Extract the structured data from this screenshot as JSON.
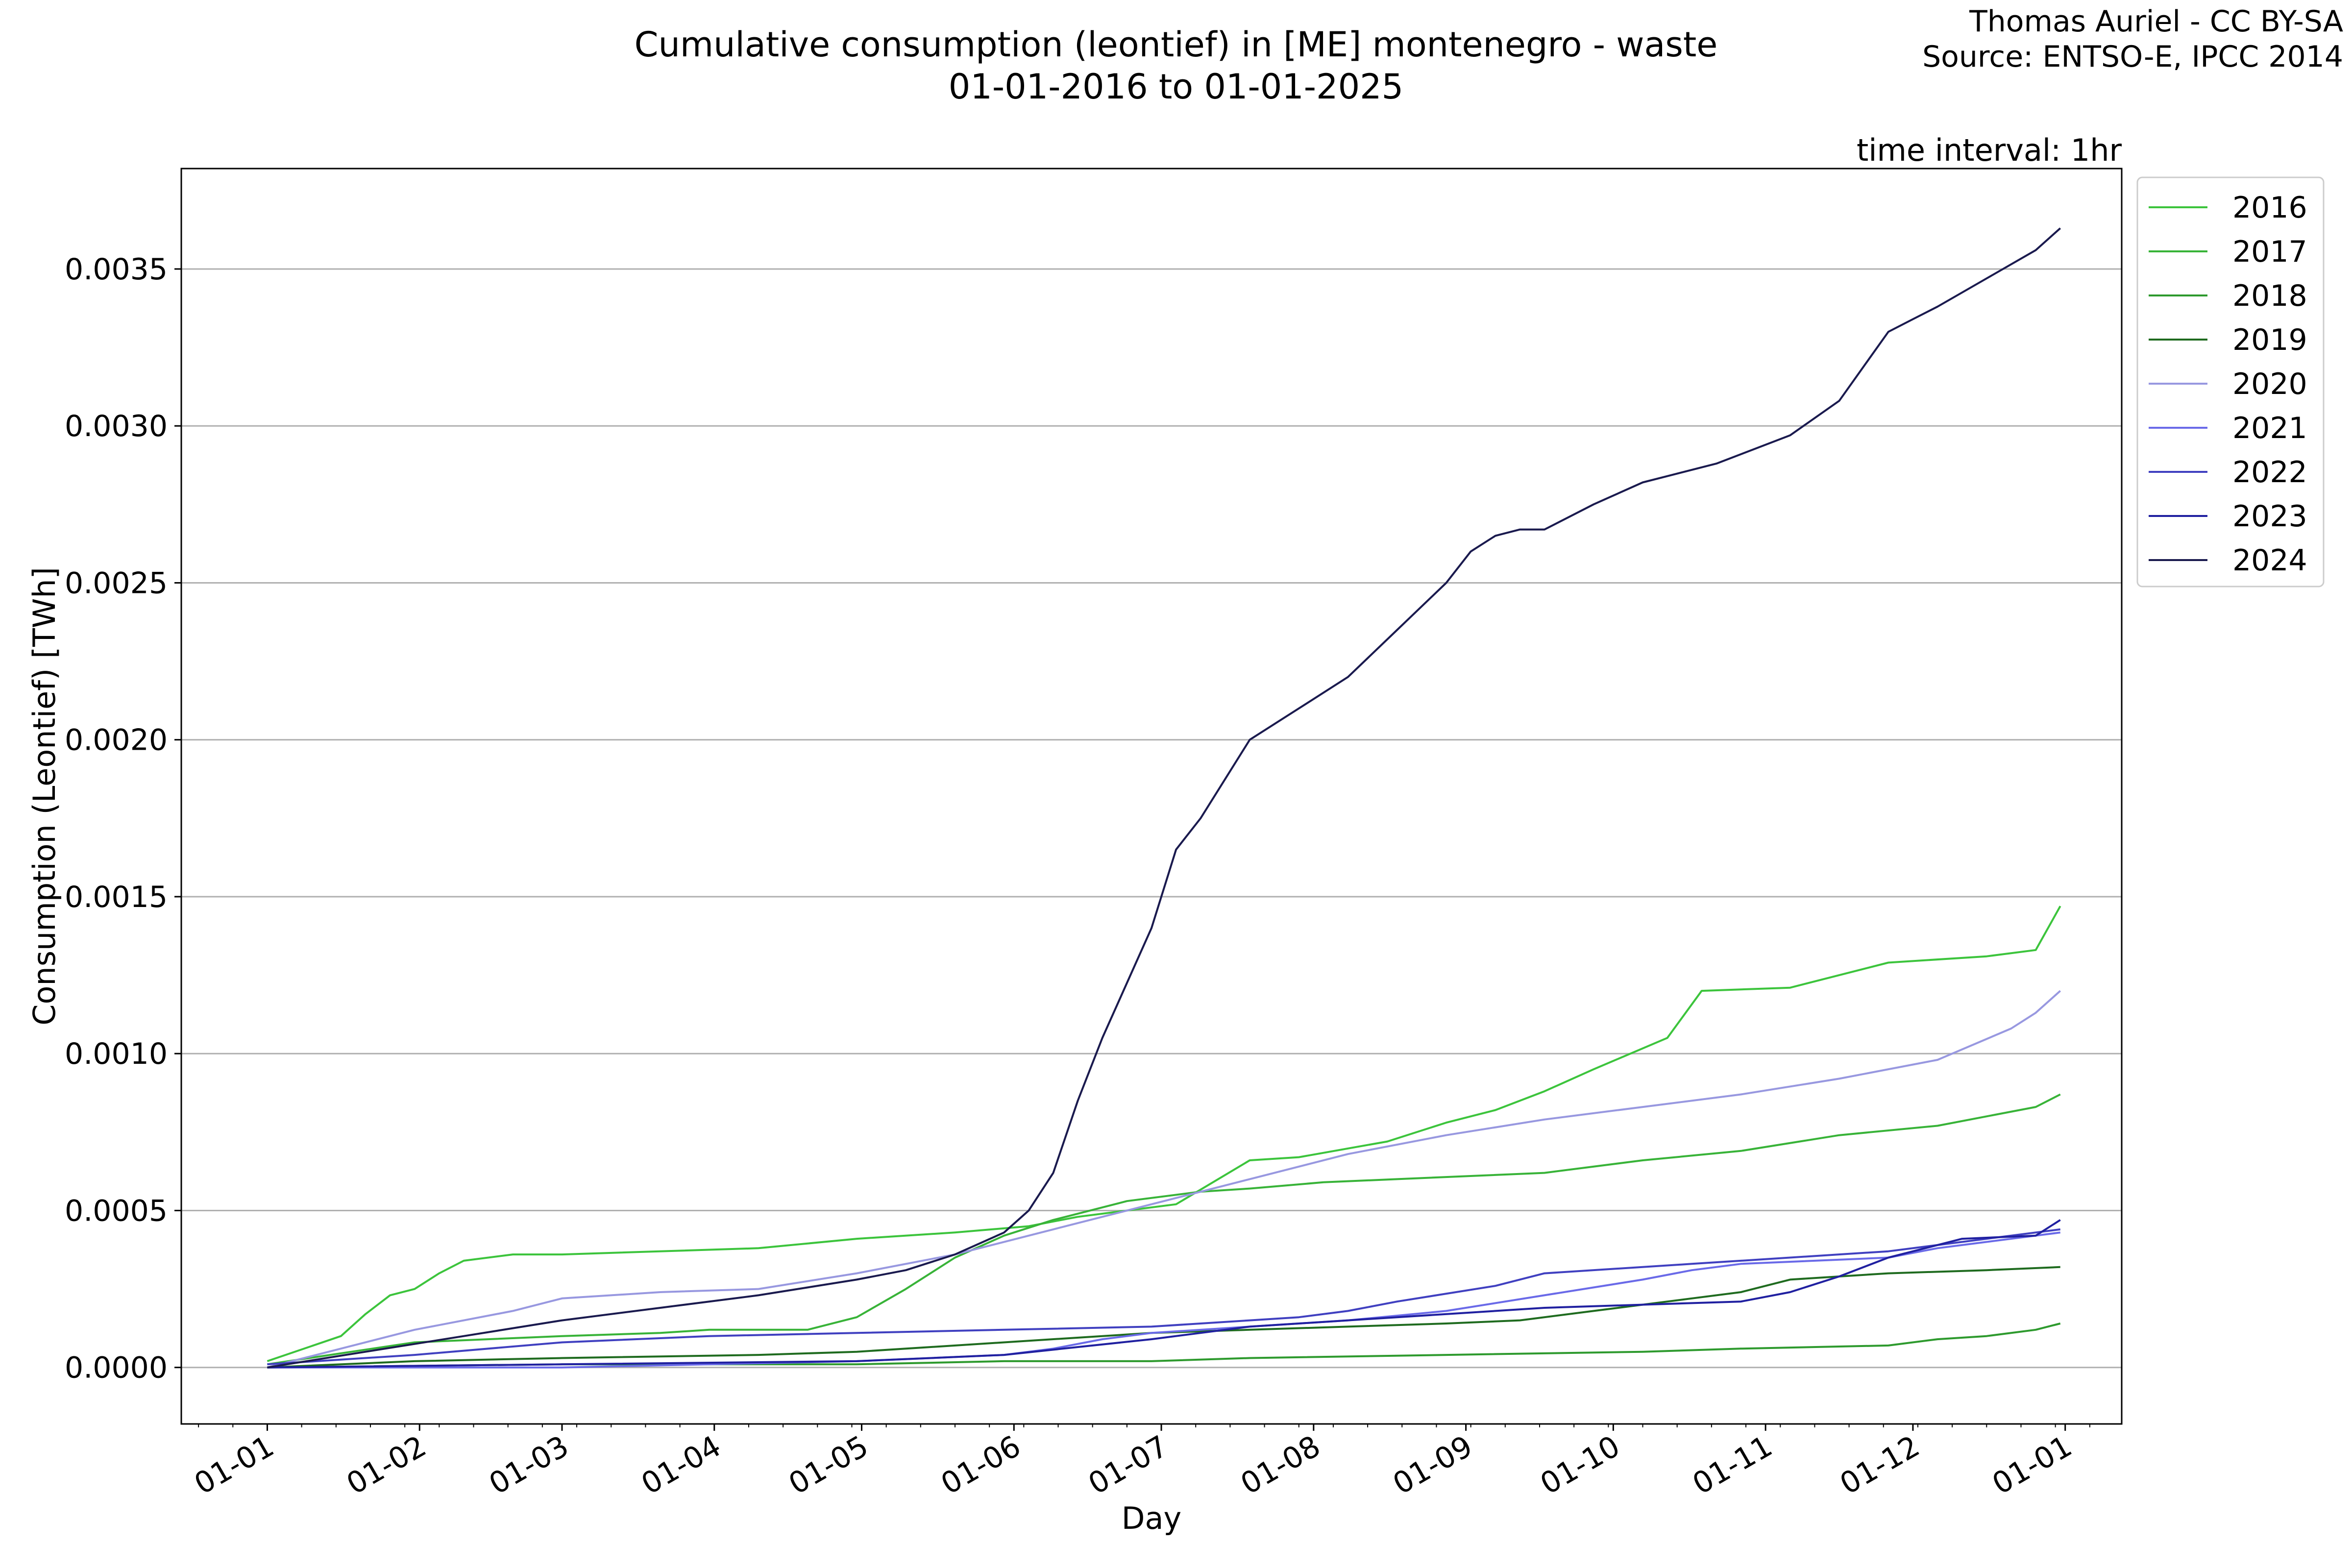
{
  "title_line1": "Cumulative consumption (leontief) in [ME] montenegro - waste",
  "title_line2": "01-01-2016 to 01-01-2025",
  "credit_line1": "Thomas Auriel - CC BY-SA",
  "credit_line2": "Source: ENTSO-E, IPCC 2014",
  "interval_label": "time interval: 1hr",
  "chart_data": {
    "type": "line",
    "xlabel": "Day",
    "ylabel": "Consumption (Leontief) [TWh]",
    "x_tick_labels": [
      "01-01",
      "01-02",
      "01-03",
      "01-04",
      "01-05",
      "01-06",
      "01-07",
      "01-08",
      "01-09",
      "01-10",
      "01-11",
      "01-12",
      "01-01"
    ],
    "y_tick_labels": [
      "0.0000",
      "0.0005",
      "0.0010",
      "0.0015",
      "0.0020",
      "0.0025",
      "0.0030",
      "0.0035"
    ],
    "y_ticks": [
      0,
      0.0005,
      0.001,
      0.0015,
      0.002,
      0.0025,
      0.003,
      0.0035
    ],
    "ylim": [
      -0.00018,
      0.00382
    ],
    "xlim_days": [
      -17.5,
      377.5
    ],
    "grid": "horizontal",
    "legend_position": "outside-right-top",
    "series": [
      {
        "name": "2016",
        "color": "#3cc43c",
        "x": [
          0,
          15,
          20,
          25,
          30,
          35,
          40,
          50,
          60,
          100,
          120,
          140,
          155,
          165,
          185,
          200,
          210,
          228,
          240,
          250,
          260,
          270,
          285,
          292,
          310,
          330,
          350,
          360,
          365
        ],
        "y": [
          2e-05,
          0.0001,
          0.00017,
          0.00023,
          0.00025,
          0.0003,
          0.00034,
          0.00036,
          0.00036,
          0.00038,
          0.00041,
          0.00043,
          0.00045,
          0.00048,
          0.00052,
          0.00066,
          0.00067,
          0.00072,
          0.00078,
          0.00082,
          0.00088,
          0.00095,
          0.00105,
          0.0012,
          0.00121,
          0.00129,
          0.00131,
          0.00133,
          0.00147
        ]
      },
      {
        "name": "2017",
        "color": "#38b338",
        "x": [
          0,
          30,
          60,
          80,
          90,
          110,
          120,
          130,
          140,
          150,
          160,
          175,
          190,
          200,
          215,
          230,
          260,
          280,
          300,
          320,
          340,
          360,
          365
        ],
        "y": [
          1e-05,
          8e-05,
          0.0001,
          0.00011,
          0.00012,
          0.00012,
          0.00016,
          0.00025,
          0.00035,
          0.00042,
          0.00047,
          0.00053,
          0.00056,
          0.00057,
          0.00059,
          0.0006,
          0.00062,
          0.00066,
          0.00069,
          0.00074,
          0.00077,
          0.00083,
          0.00087
        ]
      },
      {
        "name": "2018",
        "color": "#2e9a2e",
        "x": [
          0,
          60,
          120,
          150,
          180,
          200,
          240,
          280,
          300,
          330,
          340,
          350,
          360,
          365
        ],
        "y": [
          0,
          1e-05,
          1e-05,
          2e-05,
          2e-05,
          3e-05,
          4e-05,
          5e-05,
          6e-05,
          7e-05,
          9e-05,
          0.0001,
          0.00012,
          0.00014
        ]
      },
      {
        "name": "2019",
        "color": "#1f6b1f",
        "x": [
          0,
          30,
          60,
          100,
          120,
          150,
          180,
          200,
          220,
          240,
          255,
          270,
          290,
          300,
          310,
          330,
          350,
          365
        ],
        "y": [
          0,
          2e-05,
          3e-05,
          4e-05,
          5e-05,
          8e-05,
          0.00011,
          0.00012,
          0.00013,
          0.00014,
          0.00015,
          0.00018,
          0.00022,
          0.00024,
          0.00028,
          0.0003,
          0.00031,
          0.00032
        ]
      },
      {
        "name": "2020",
        "color": "#9898e0",
        "x": [
          0,
          30,
          50,
          60,
          80,
          100,
          120,
          140,
          160,
          180,
          200,
          220,
          240,
          260,
          280,
          300,
          320,
          340,
          355,
          360,
          365
        ],
        "y": [
          0,
          0.00012,
          0.00018,
          0.00022,
          0.00024,
          0.00025,
          0.0003,
          0.00036,
          0.00044,
          0.00052,
          0.0006,
          0.00068,
          0.00074,
          0.00079,
          0.00083,
          0.00087,
          0.00092,
          0.00098,
          0.00108,
          0.00113,
          0.0012
        ]
      },
      {
        "name": "2021",
        "color": "#6a6ae8",
        "x": [
          0,
          60,
          90,
          120,
          150,
          160,
          170,
          180,
          200,
          220,
          240,
          260,
          280,
          290,
          300,
          330,
          340,
          360,
          365
        ],
        "y": [
          0,
          0,
          1e-05,
          2e-05,
          4e-05,
          6e-05,
          9e-05,
          0.00011,
          0.00013,
          0.00015,
          0.00018,
          0.00023,
          0.00028,
          0.00031,
          0.00033,
          0.00035,
          0.00038,
          0.00042,
          0.00043
        ]
      },
      {
        "name": "2022",
        "color": "#4040c0",
        "x": [
          0,
          30,
          60,
          90,
          120,
          150,
          180,
          200,
          210,
          220,
          230,
          250,
          260,
          290,
          300,
          330,
          350,
          365
        ],
        "y": [
          1e-05,
          4e-05,
          8e-05,
          0.0001,
          0.00011,
          0.00012,
          0.00013,
          0.00015,
          0.00016,
          0.00018,
          0.00021,
          0.00026,
          0.0003,
          0.00033,
          0.00034,
          0.00037,
          0.00041,
          0.00044
        ]
      },
      {
        "name": "2023",
        "color": "#2020a0",
        "x": [
          0,
          60,
          120,
          150,
          180,
          195,
          200,
          210,
          220,
          230,
          250,
          260,
          280,
          300,
          310,
          320,
          330,
          345,
          360,
          365
        ],
        "y": [
          0,
          1e-05,
          2e-05,
          4e-05,
          9e-05,
          0.00012,
          0.00013,
          0.00014,
          0.00015,
          0.00016,
          0.00018,
          0.00019,
          0.0002,
          0.00021,
          0.00024,
          0.00029,
          0.00035,
          0.00041,
          0.00042,
          0.00047
        ]
      },
      {
        "name": "2024",
        "color": "#1a1a4e",
        "x": [
          0,
          20,
          40,
          60,
          80,
          100,
          120,
          130,
          140,
          150,
          155,
          160,
          165,
          170,
          180,
          185,
          190,
          200,
          210,
          220,
          230,
          240,
          245,
          250,
          255,
          260,
          270,
          280,
          285,
          295,
          310,
          320,
          330,
          335,
          340,
          350,
          360,
          365
        ],
        "y": [
          0,
          5e-05,
          0.0001,
          0.00015,
          0.00019,
          0.00023,
          0.00028,
          0.00031,
          0.00036,
          0.00043,
          0.0005,
          0.00062,
          0.00085,
          0.00105,
          0.0014,
          0.00165,
          0.00175,
          0.002,
          0.0021,
          0.0022,
          0.00235,
          0.0025,
          0.0026,
          0.00265,
          0.00267,
          0.00267,
          0.00275,
          0.00282,
          0.00284,
          0.00288,
          0.00297,
          0.00308,
          0.0033,
          0.00334,
          0.00338,
          0.00347,
          0.00356,
          0.00363
        ]
      }
    ]
  }
}
